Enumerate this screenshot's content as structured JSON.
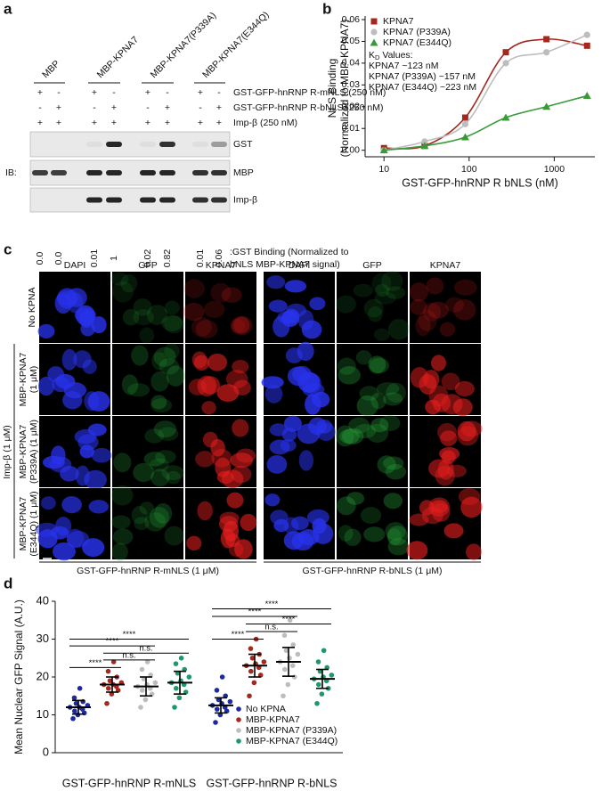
{
  "panel_a": {
    "label": "a",
    "lanes": [
      "MBP",
      "MBP-KPNA7",
      "MBP-KPNA7(P339A)",
      "MBP-KPNA7(E344Q)"
    ],
    "rows": [
      {
        "label": "GST-GFP-hnRNP R-mNLS (250 nM)",
        "signs": [
          "+",
          "-",
          "+",
          "-",
          "+",
          "-",
          "+",
          "-"
        ]
      },
      {
        "label": "GST-GFP-hnRNP R-bNLS (250 nM)",
        "signs": [
          "-",
          "+",
          "-",
          "+",
          "-",
          "+",
          "-",
          "+"
        ]
      },
      {
        "label": "Imp-β (250 nM)",
        "signs": [
          "+",
          "+",
          "+",
          "+",
          "+",
          "+",
          "+",
          "+"
        ]
      }
    ],
    "ib_label": "IB:",
    "bands": [
      "GST",
      "MBP",
      "Imp-β"
    ],
    "quant": [
      "0.0",
      "0.0",
      "0.01",
      "1",
      "0.02",
      "0.82",
      "0.01",
      "0.06"
    ],
    "quant_label": [
      ":GST Binding (Normalized to",
      "bNLS MBP-KPNA7 signal)"
    ]
  },
  "chart_data": [
    {
      "type": "line",
      "panel": "b",
      "ylabel": [
        "NLS Binding",
        "(Normalized to MBP-KPNA7)"
      ],
      "xlabel": "GST-GFP-hnRNP R bNLS (nM)",
      "x": [
        10,
        30,
        90,
        270,
        810,
        2430
      ],
      "xscale": "log",
      "xlim": [
        6,
        3000
      ],
      "xticks": [
        10,
        100,
        1000
      ],
      "ylim": [
        -0.003,
        0.06
      ],
      "yticks": [
        {
          "value": 0,
          "label": "0.00"
        },
        0.01,
        0.02,
        0.03,
        0.04,
        0.05,
        0.06
      ],
      "legend": "upper-left",
      "series": [
        {
          "name": "KPNA7",
          "color": "#a3281e",
          "marker": "square",
          "values": [
            0.001,
            0.002,
            0.015,
            0.045,
            0.051,
            0.048
          ]
        },
        {
          "name": "KPNA7 (P339A)",
          "color": "#bdbdbd",
          "marker": "circle",
          "values": [
            0.0,
            0.004,
            0.012,
            0.04,
            0.045,
            0.053
          ]
        },
        {
          "name": "KPNA7 (E344Q)",
          "color": "#3a9a3a",
          "marker": "triangle",
          "values": [
            0.0,
            0.002,
            0.006,
            0.015,
            0.02,
            0.025
          ]
        }
      ],
      "annotation": {
        "header": [
          "K",
          "D",
          " Values:"
        ],
        "lines": [
          "KPNA7 ~123 nM",
          "KPNA7 (P339A) ~157 nM",
          "KPNA7 (E344Q) ~223 nM"
        ]
      }
    },
    {
      "type": "dot",
      "panel": "d",
      "ylabel": "Mean Nuclear GFP Signal (A.U.)",
      "groups": [
        "GST-GFP-hnRNP R-mNLS",
        "GST-GFP-hnRNP R-bNLS"
      ],
      "ylim": [
        0,
        40
      ],
      "yticks": [
        0,
        10,
        20,
        30,
        40
      ],
      "legend": "lower-right",
      "series": [
        {
          "name": "No KPNA",
          "color": "#1c2a9c",
          "values": [
            [
              9,
              10,
              10.5,
              11,
              11.5,
              12,
              12,
              12.5,
              13,
              13.5,
              14.5,
              17
            ],
            [
              8,
              10,
              11,
              11.5,
              12,
              12.5,
              13,
              13.5,
              14,
              15,
              16.5,
              20
            ]
          ],
          "mean": [
            12,
            12.5
          ],
          "sd": [
            1.8,
            2
          ]
        },
        {
          "name": "MBP-KPNA7",
          "color": "#a3281e",
          "values": [
            [
              13,
              15.5,
              16.5,
              17,
              17.5,
              18,
              18,
              18.5,
              19,
              20,
              21.5,
              24
            ],
            [
              15,
              18.5,
              20.5,
              21.5,
              22.5,
              23,
              23.5,
              24,
              25,
              26,
              27.5,
              30
            ]
          ],
          "mean": [
            18,
            23
          ],
          "sd": [
            2,
            3
          ]
        },
        {
          "name": "MBP-KPNA7 (P339A)",
          "color": "#bdbdbd",
          "values": [
            [
              12,
              14,
              15.5,
              16.5,
              17,
              17.5,
              18,
              18.5,
              19.5,
              20.5,
              22,
              24
            ],
            [
              15,
              18,
              20,
              22,
              23,
              24,
              25,
              26,
              27,
              28.5,
              31,
              35
            ]
          ],
          "mean": [
            17.5,
            24
          ],
          "sd": [
            2.5,
            3.8
          ]
        },
        {
          "name": "MBP-KPNA7 (E344Q)",
          "color": "#1a9a6a",
          "values": [
            [
              12,
              14.5,
              16,
              17,
              18,
              18.5,
              19,
              20,
              21,
              22,
              23.5,
              25
            ],
            [
              13,
              15.5,
              17,
              18,
              19,
              19.5,
              20,
              20.5,
              21.5,
              22.5,
              24,
              27
            ]
          ],
          "mean": [
            18.5,
            19.5
          ],
          "sd": [
            3,
            2.5
          ]
        }
      ],
      "brackets": [
        {
          "group": 0,
          "from": 0,
          "to": 1,
          "y": 22.5,
          "label": "****"
        },
        {
          "group": 0,
          "from": 1,
          "to": 2,
          "y": 24.5,
          "label": "n.s."
        },
        {
          "group": 0,
          "from": 1,
          "to": 3,
          "y": 26.3,
          "label": "n.s."
        },
        {
          "group": 0,
          "from": 0,
          "to": 2,
          "y": 28.2,
          "label": "****"
        },
        {
          "group": 0,
          "from": 0,
          "to": 3,
          "y": 30,
          "label": "****"
        },
        {
          "group": 1,
          "from": 0,
          "to": 1,
          "y": 30,
          "label": "****"
        },
        {
          "group": 1,
          "from": 1,
          "to": 2,
          "y": 32,
          "label": "n.s."
        },
        {
          "group": 1,
          "from": 1,
          "to": 3,
          "y": 34,
          "label": "****"
        },
        {
          "group": 1,
          "from": 0,
          "to": 2,
          "y": 36,
          "label": "****"
        },
        {
          "group": 1,
          "from": 0,
          "to": 3,
          "y": 38,
          "label": "****"
        }
      ]
    }
  ],
  "panel_c": {
    "label": "c",
    "channels": [
      "DAPI",
      "GFP",
      "KPNA7",
      "DAPI",
      "GFP",
      "KPNA7"
    ],
    "rows": [
      [
        "No KPNA"
      ],
      [
        "MBP-KPNA7",
        "(1 μM)"
      ],
      [
        "MBP-KPNA7",
        "(P339A) (1 μM)"
      ],
      [
        "MBP-KPNA7",
        "(E344Q) (1 μM)"
      ]
    ],
    "side_label": "Imp-β (1 μM)",
    "blocks": [
      "GST-GFP-hnRNP R-mNLS (1 μM)",
      "GST-GFP-hnRNP R-bNLS (1 μM)"
    ]
  }
}
